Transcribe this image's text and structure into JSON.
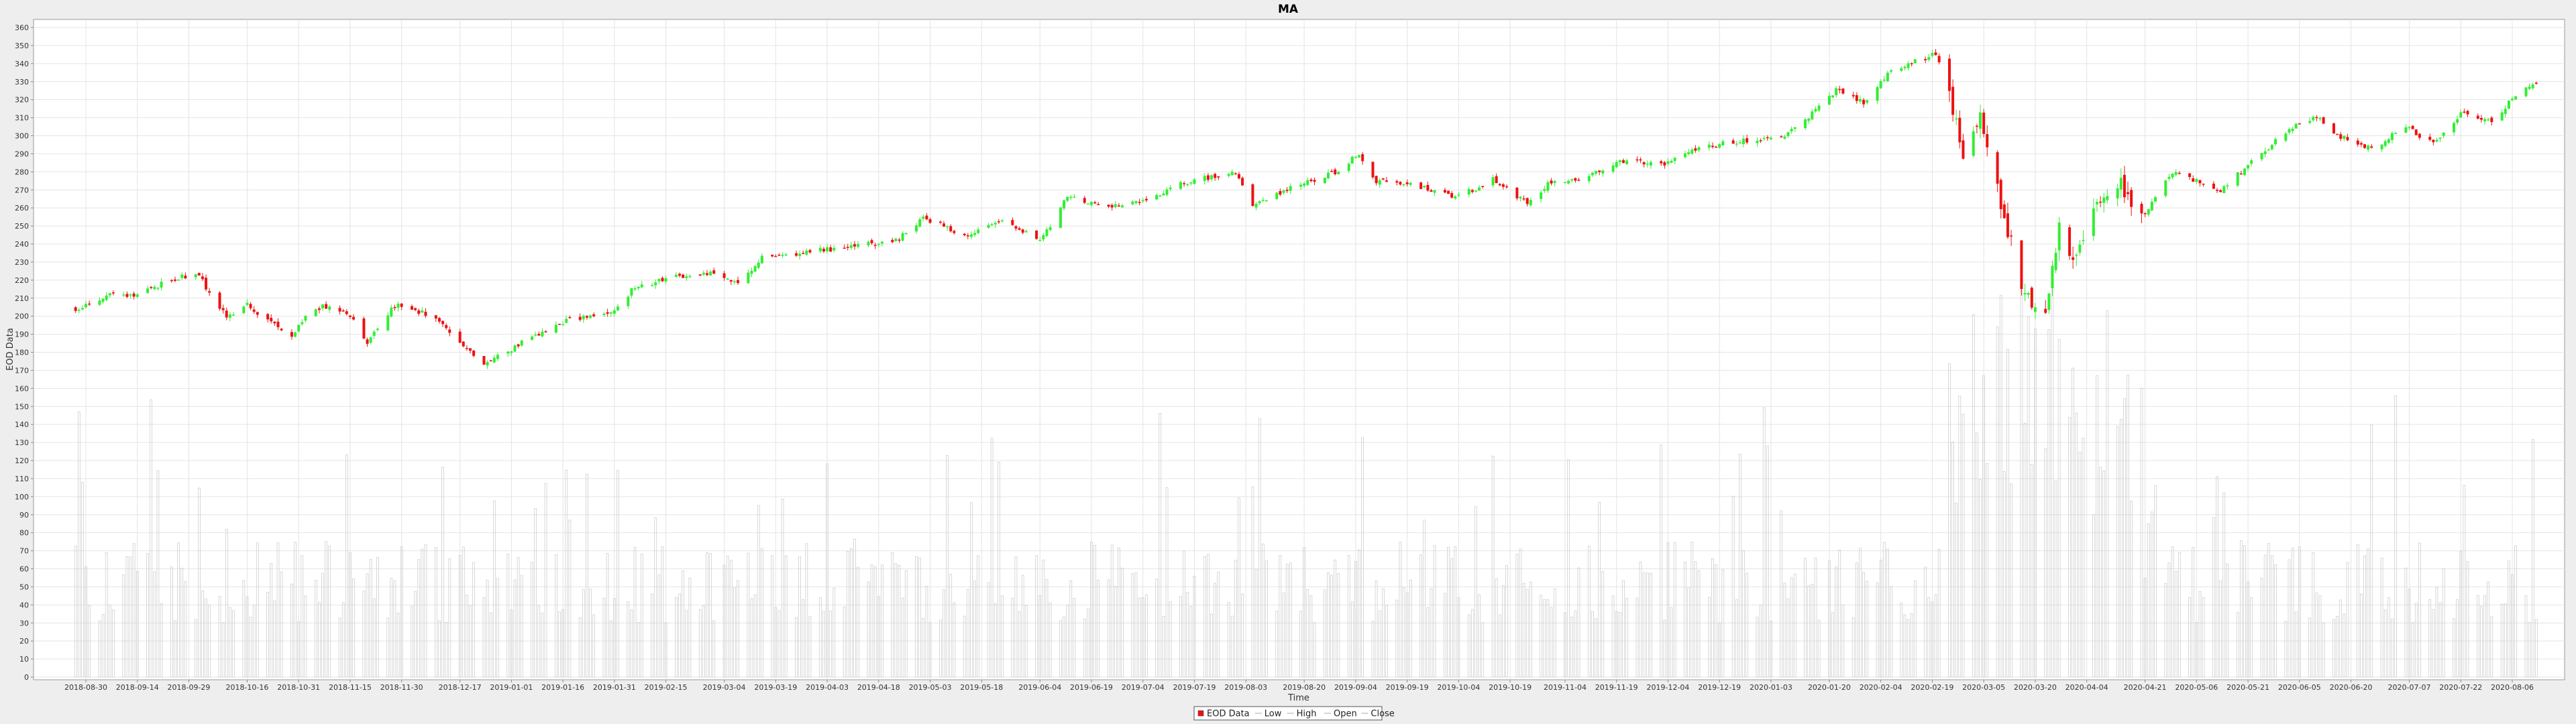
{
  "chart_data": {
    "type": "candlestick",
    "title": "MA",
    "xlabel": "Time",
    "ylabel": "EOD Data",
    "ylim": [
      0,
      360
    ],
    "y_tick_step": 10,
    "grid": true,
    "legend_placement": "bottom-center",
    "x_tick_labels": [
      "2018-08-30",
      "2018-09-14",
      "2018-09-29",
      "2018-10-16",
      "2018-10-31",
      "2018-11-15",
      "2018-11-30",
      "2018-12-17",
      "2019-01-01",
      "2019-01-16",
      "2019-01-31",
      "2019-02-15",
      "2019-03-04",
      "2019-03-19",
      "2019-04-03",
      "2019-04-18",
      "2019-05-03",
      "2019-05-18",
      "2019-06-04",
      "2019-06-19",
      "2019-07-04",
      "2019-07-19",
      "2019-08-03",
      "2019-08-20",
      "2019-09-04",
      "2019-09-19",
      "2019-10-04",
      "2019-10-19",
      "2019-11-04",
      "2019-11-19",
      "2019-12-04",
      "2019-12-19",
      "2020-01-03",
      "2020-01-20",
      "2020-02-04",
      "2020-02-19",
      "2020-03-05",
      "2020-03-20",
      "2020-04-04",
      "2020-04-21",
      "2020-05-06",
      "2020-05-21",
      "2020-06-05",
      "2020-06-20",
      "2020-07-07",
      "2020-07-22",
      "2020-08-06"
    ],
    "legend": [
      {
        "label": "EOD Data",
        "kind": "box"
      },
      {
        "label": "Low",
        "kind": "line"
      },
      {
        "label": "High",
        "kind": "line"
      },
      {
        "label": "Open",
        "kind": "line"
      },
      {
        "label": "Close",
        "kind": "line"
      }
    ],
    "colors": {
      "up": "#33ee33",
      "down": "#ee1111",
      "volume": "#c8c8c8",
      "grid": "#e4e4e4",
      "plot_bg": "#ffffff",
      "page_bg": "#eeeeee"
    },
    "price_anchors": [
      [
        "2018-08-27",
        204
      ],
      [
        "2018-08-31",
        206
      ],
      [
        "2018-09-07",
        213
      ],
      [
        "2018-09-14",
        211
      ],
      [
        "2018-09-20",
        217
      ],
      [
        "2018-09-27",
        222
      ],
      [
        "2018-10-02",
        223
      ],
      [
        "2018-10-05",
        212
      ],
      [
        "2018-10-10",
        200
      ],
      [
        "2018-10-16",
        206
      ],
      [
        "2018-10-24",
        196
      ],
      [
        "2018-10-29",
        190
      ],
      [
        "2018-11-02",
        199
      ],
      [
        "2018-11-07",
        206
      ],
      [
        "2018-11-15",
        201
      ],
      [
        "2018-11-20",
        185
      ],
      [
        "2018-11-28",
        206
      ],
      [
        "2018-12-04",
        203
      ],
      [
        "2018-12-10",
        200
      ],
      [
        "2018-12-20",
        180
      ],
      [
        "2018-12-24",
        173
      ],
      [
        "2019-01-02",
        183
      ],
      [
        "2019-01-10",
        191
      ],
      [
        "2019-01-18",
        198
      ],
      [
        "2019-01-30",
        202
      ],
      [
        "2019-02-05",
        214
      ],
      [
        "2019-02-15",
        221
      ],
      [
        "2019-02-28",
        224
      ],
      [
        "2019-03-08",
        218
      ],
      [
        "2019-03-15",
        232
      ],
      [
        "2019-03-29",
        236
      ],
      [
        "2019-04-10",
        238
      ],
      [
        "2019-04-24",
        243
      ],
      [
        "2019-05-01",
        255
      ],
      [
        "2019-05-13",
        244
      ],
      [
        "2019-05-24",
        254
      ],
      [
        "2019-06-04",
        241
      ],
      [
        "2019-06-12",
        266
      ],
      [
        "2019-06-24",
        260
      ],
      [
        "2019-07-05",
        265
      ],
      [
        "2019-07-19",
        276
      ],
      [
        "2019-07-31",
        279
      ],
      [
        "2019-08-05",
        262
      ],
      [
        "2019-08-15",
        270
      ],
      [
        "2019-08-29",
        280
      ],
      [
        "2019-09-05",
        290
      ],
      [
        "2019-09-10",
        275
      ],
      [
        "2019-09-20",
        274
      ],
      [
        "2019-10-03",
        265
      ],
      [
        "2019-10-14",
        276
      ],
      [
        "2019-10-24",
        262
      ],
      [
        "2019-10-31",
        275
      ],
      [
        "2019-11-08",
        276
      ],
      [
        "2019-11-20",
        286
      ],
      [
        "2019-12-03",
        284
      ],
      [
        "2019-12-13",
        294
      ],
      [
        "2019-12-31",
        298
      ],
      [
        "2020-01-08",
        301
      ],
      [
        "2020-01-15",
        312
      ],
      [
        "2020-01-22",
        325
      ],
      [
        "2020-01-30",
        318
      ],
      [
        "2020-02-06",
        335
      ],
      [
        "2020-02-13",
        341
      ],
      [
        "2020-02-20",
        345
      ],
      [
        "2020-02-24",
        325
      ],
      [
        "2020-02-28",
        290
      ],
      [
        "2020-03-04",
        312
      ],
      [
        "2020-03-09",
        272
      ],
      [
        "2020-03-12",
        248
      ],
      [
        "2020-03-16",
        218
      ],
      [
        "2020-03-18",
        210
      ],
      [
        "2020-03-23",
        205
      ],
      [
        "2020-03-27",
        248
      ],
      [
        "2020-04-01",
        230
      ],
      [
        "2020-04-06",
        258
      ],
      [
        "2020-04-13",
        275
      ],
      [
        "2020-04-20",
        255
      ],
      [
        "2020-04-29",
        280
      ],
      [
        "2020-05-05",
        276
      ],
      [
        "2020-05-13",
        270
      ],
      [
        "2020-05-22",
        285
      ],
      [
        "2020-06-03",
        305
      ],
      [
        "2020-06-10",
        310
      ],
      [
        "2020-06-16",
        300
      ],
      [
        "2020-06-26",
        293
      ],
      [
        "2020-07-06",
        305
      ],
      [
        "2020-07-14",
        295
      ],
      [
        "2020-07-22",
        312
      ],
      [
        "2020-07-31",
        308
      ],
      [
        "2020-08-06",
        320
      ],
      [
        "2020-08-13",
        330
      ]
    ]
  }
}
